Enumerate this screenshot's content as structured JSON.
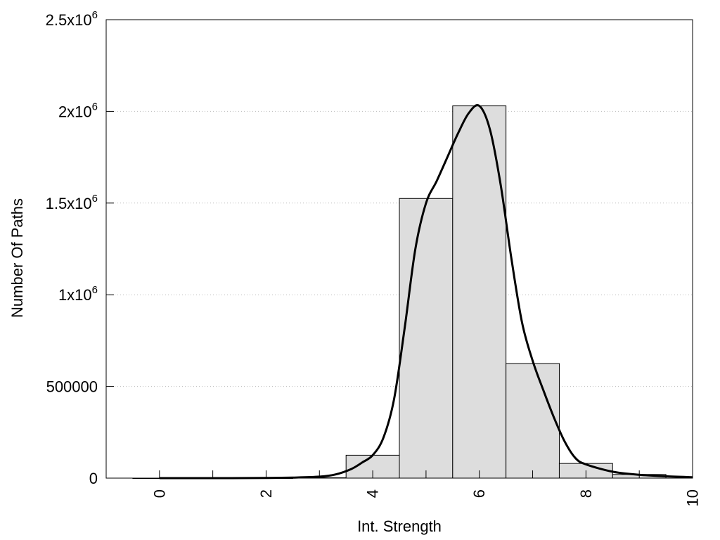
{
  "chart_data": {
    "type": "bar",
    "title": "",
    "xlabel": "Int. Strength",
    "ylabel": "Number Of Paths",
    "xlim": [
      -1,
      10
    ],
    "ylim": [
      0,
      2500000
    ],
    "grid": "horizontal dotted",
    "x_ticks": [
      {
        "value": 0,
        "label": "0"
      },
      {
        "value": 2,
        "label": "2"
      },
      {
        "value": 4,
        "label": "4"
      },
      {
        "value": 6,
        "label": "6"
      },
      {
        "value": 8,
        "label": "8"
      },
      {
        "value": 10,
        "label": "10"
      }
    ],
    "y_ticks": [
      {
        "value": 0,
        "label": "0",
        "exp": ""
      },
      {
        "value": 500000,
        "label": "500000",
        "exp": ""
      },
      {
        "value": 1000000,
        "label": "1x10",
        "exp": "6"
      },
      {
        "value": 1500000,
        "label": "1.5x10",
        "exp": "6"
      },
      {
        "value": 2000000,
        "label": "2x10",
        "exp": "6"
      },
      {
        "value": 2500000,
        "label": "2.5x10",
        "exp": "6"
      }
    ],
    "bars": {
      "x": [
        0,
        1,
        2,
        3,
        4,
        5,
        6,
        7,
        8,
        9
      ],
      "values": [
        0,
        0,
        0,
        2000,
        125000,
        1525000,
        2030000,
        625000,
        80000,
        20000
      ],
      "fill": "#dddddd",
      "stroke": "#000000"
    },
    "curve": {
      "x": [
        0,
        1,
        2,
        2.5,
        3,
        3.3,
        3.6,
        3.8,
        4.0,
        4.2,
        4.4,
        4.6,
        4.8,
        5.0,
        5.2,
        5.4,
        5.6,
        5.8,
        6.0,
        6.2,
        6.4,
        6.6,
        6.8,
        7.0,
        7.2,
        7.4,
        7.6,
        7.8,
        8.0,
        8.5,
        9.0,
        9.5,
        10
      ],
      "y": [
        0,
        0,
        1000,
        3000,
        8000,
        20000,
        50000,
        85000,
        125000,
        220000,
        430000,
        820000,
        1250000,
        1500000,
        1620000,
        1750000,
        1880000,
        1990000,
        2030000,
        1900000,
        1600000,
        1200000,
        850000,
        640000,
        480000,
        330000,
        200000,
        110000,
        75000,
        35000,
        18000,
        10000,
        5000
      ],
      "color": "#000000"
    }
  }
}
